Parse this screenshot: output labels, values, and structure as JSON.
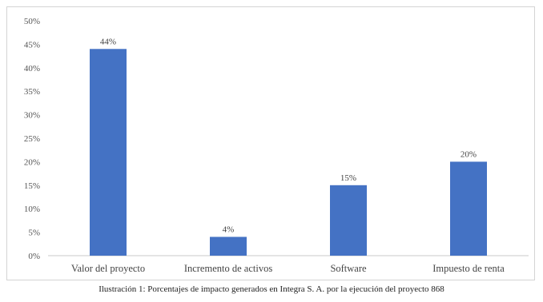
{
  "chart_data": {
    "type": "bar",
    "categories": [
      "Valor del proyecto",
      "Incremento de activos",
      "Software",
      "Impuesto de renta"
    ],
    "values": [
      44,
      4,
      15,
      20
    ],
    "data_labels": [
      "44%",
      "4%",
      "15%",
      "20%"
    ],
    "yticks": [
      "0%",
      "5%",
      "10%",
      "15%",
      "20%",
      "25%",
      "30%",
      "35%",
      "40%",
      "45%",
      "50%"
    ],
    "ylim": [
      0,
      50
    ],
    "grid": false,
    "legend": "none",
    "bar_color": "#4472c4"
  },
  "caption": "Ilustración 1: Porcentajes de impacto generados en Integra S. A. por la ejecución del proyecto 868"
}
